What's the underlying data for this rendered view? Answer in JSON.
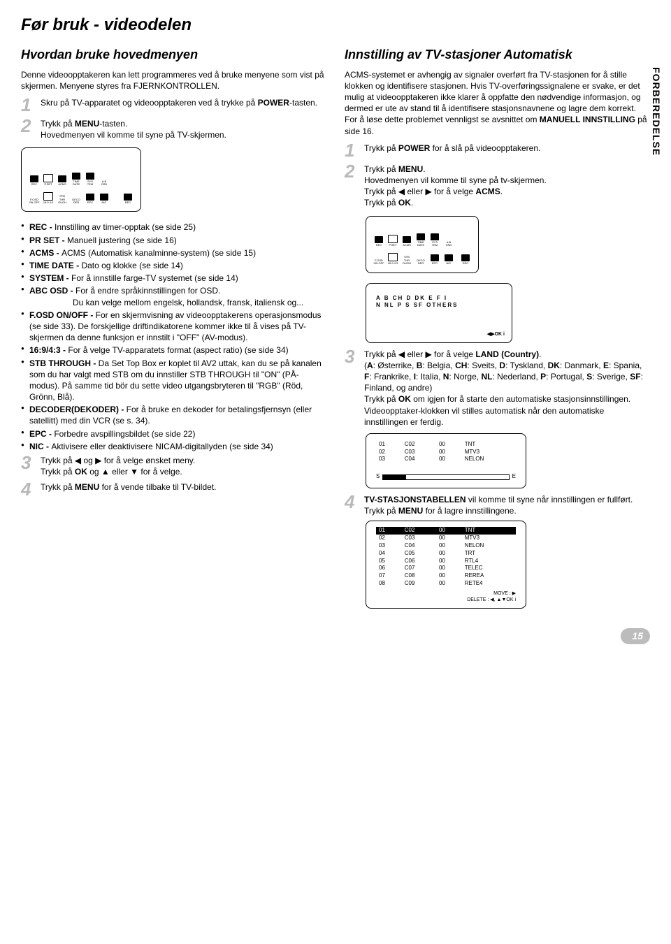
{
  "page_title": "Før bruk - videodelen",
  "sidebar_label": "FORBEREDELSE",
  "page_number": "15",
  "left": {
    "section_title": "Hvordan bruke hovedmenyen",
    "intro": "Denne videoopptakeren kan lett programmeres ved å bruke menyene som vist på skjermen. Menyene styres fra FJERNKONTROLLEN.",
    "step1": "Skru på TV-apparatet og videoopptakeren ved å trykke på POWER-tasten.",
    "step2": "Trykk på MENU-tasten.\nHovedmenyen vil komme til syne på TV-skjermen.",
    "bullets": [
      {
        "term": "REC -",
        "text": "Innstilling av timer-opptak (se side 25)"
      },
      {
        "term": "PR SET -",
        "text": "Manuell justering (se side 16)"
      },
      {
        "term": "ACMS -",
        "text": "ACMS (Automatisk kanalminne-system) (se side 15)"
      },
      {
        "term": "TIME DATE -",
        "text": "Dato og klokke (se side 14)"
      },
      {
        "term": "SYSTEM -",
        "text": "For å innstille farge-TV systemet (se side 14)"
      },
      {
        "term": "ABC OSD -",
        "text": "For å endre språkinnstillingen for OSD.\nDu kan velge mellom engelsk, hollandsk, fransk, italiensk og..."
      },
      {
        "term": "F.OSD ON/OFF -",
        "text": "For en skjermvisning av videoopptakerens operasjonsmodus (se side 33). De forskjellige driftindikatorene kommer ikke til å vises på TV-skjermen da denne funksjon er innstilt i \"OFF\" (AV-modus)."
      },
      {
        "term": "16:9/4:3 -",
        "text": "For å velge TV-apparatets format (aspect ratio) (se side 34)"
      },
      {
        "term": "STB THROUGH -",
        "text": "Da Set Top Box er koplet til AV2 uttak, kan du se på kanalen som du har valgt med STB om du innstiller STB THROUGH til \"ON\" (PÅ-modus). På samme tid bör du sette video utgangsbryteren til \"RGB\" (Röd, Grönn, Blå)."
      },
      {
        "term": "DECODER(DEKODER) -",
        "text": "For å bruke en dekoder for betalingsfjernsyn (eller satellitt) med din VCR (se s. 34)."
      },
      {
        "term": "EPC -",
        "text": "Forbedre avspillingsbildet (se side 22)"
      },
      {
        "term": "NIC -",
        "text": "Aktivisere eller deaktivisere NICAM-digitallyden (se side 34)"
      }
    ],
    "step3": "Trykk på ◀ og ▶ for å velge ønsket meny.\nTrykk på OK og ▲ eller ▼ for å velge.",
    "step4": "Trykk på MENU for å vende tilbake til TV-bildet."
  },
  "right": {
    "section_title": "Innstilling av TV-stasjoner Automatisk",
    "intro": "ACMS-systemet er avhengig av signaler overført fra TV-stasjonen for å stille klokken og identifisere stasjonen. Hvis TV-overføringssignalene er svake, er det mulig at videoopptakeren ikke klarer å oppfatte den nødvendige informasjon, og dermed er ute av stand til å identifisere stasjonsnavnene og lagre dem korrekt. For å løse dette problemet vennligst se avsnittet om MANUELL INNSTILLING på side 16.",
    "step1": "Trykk på POWER for å slå på videoopptakeren.",
    "step2": "Trykk på MENU.\nHovedmenyen vil komme til syne på tv-skjermen.\nTrykk på ◀ eller ▶ for å velge ACMS.\nTrykk på OK.",
    "countries_line1": "A   B   CH   D   DK   E   F   I",
    "countries_line2": "N   NL   P   S   SF   OTHERS",
    "panel_nav": "◀▶OK i",
    "step3": "Trykk på ◀ eller ▶ for å velge LAND (Country).\n(A: Østerrike, B: Belgia, CH: Sveits, D: Tyskland, DK: Danmark, E: Spania, F: Frankrike, I: Italia, N: Norge, NL: Nederland, P: Portugal, S: Sverige, SF: Finland, og andre)\nTrykk på OK om igjen for å starte den automatiske stasjonsinnstillingen.\nVideoopptaker-klokken vil stilles automatisk når den automatiske innstillingen er ferdig.",
    "scan_rows": [
      [
        "01",
        "C02",
        "00",
        "TNT"
      ],
      [
        "02",
        "C03",
        "00",
        "MTV3"
      ],
      [
        "03",
        "C04",
        "00",
        "NELON"
      ]
    ],
    "scan_labels": {
      "s": "S",
      "e": "E"
    },
    "step4": "TV-STASJONSTABELLEN vil komme til syne når innstillingen er fullført.\nTrykk på MENU for å lagre innstillingene.",
    "station_rows": [
      [
        "01",
        "C02",
        "00",
        "TNT"
      ],
      [
        "02",
        "C03",
        "00",
        "MTV3"
      ],
      [
        "03",
        "C04",
        "00",
        "NELON"
      ],
      [
        "04",
        "C05",
        "00",
        "TRT"
      ],
      [
        "05",
        "C06",
        "00",
        "RTL4"
      ],
      [
        "06",
        "C07",
        "00",
        "TELEC"
      ],
      [
        "07",
        "C08",
        "00",
        "REREA"
      ],
      [
        "08",
        "C09",
        "00",
        "RETE4"
      ]
    ],
    "station_footer1": "MOVE : ▶",
    "station_footer2": "DELETE : ◀, ▲▼OK i"
  },
  "icon_labels": {
    "row1": [
      "REC",
      "P.SET",
      "ACMS",
      "TIME DATE",
      "SYS TEM",
      "A,B OSD"
    ],
    "row2": [
      "F.OSD ON OFF",
      "16:9 4:3",
      "STB THR OUGH",
      "DECO DER",
      "EPC",
      "NIC",
      "REC"
    ]
  }
}
